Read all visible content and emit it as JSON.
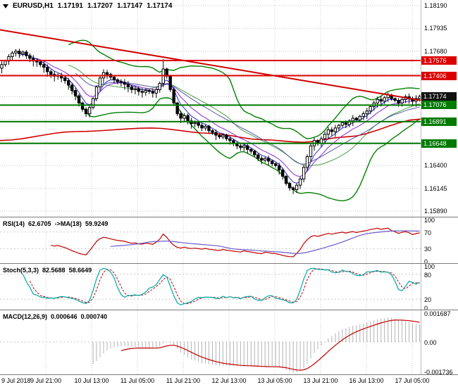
{
  "title": {
    "symbol_period": "EURUSD,H1",
    "open": "1.17191",
    "high": "1.17207",
    "low": "1.17147",
    "close": "1.17174"
  },
  "colors": {
    "grid": "#c9c9c9",
    "axis_text": "#000000",
    "bull": "#ffffff",
    "bear": "#000000",
    "candle_stroke": "#000000",
    "bollinger": "#008000",
    "bollinger_mid": "#4aa04a",
    "ma_fast": [
      "#2b2bd0",
      "#8a2bd0",
      "#5757a8"
    ],
    "ma_slow": "#d00000",
    "trendline": "#d00000",
    "resistance": "#dd0000",
    "support": "#007a00",
    "current_price_bg": "#111111",
    "rsi": "#c00000",
    "rsi_ma": "#6a5acd",
    "stoch_main": "#00a8a8",
    "stoch_signal": "#c00000",
    "macd_hist": "#b4b4b4",
    "macd_signal": "#c00000"
  },
  "chart_data": {
    "type": "candlestick",
    "symbol": "EURUSD",
    "timeframe": "H1",
    "x_labels": [
      "9 Jul 2018",
      "9 Jul 21:00",
      "10 Jul 13:00",
      "11 Jul 05:00",
      "11 Jul 21:00",
      "12 Jul 13:00",
      "13 Jul 05:00",
      "13 Jul 21:00",
      "16 Jul 13:00",
      "17 Jul 05:00"
    ],
    "y_range": [
      1.1589,
      1.1819
    ],
    "y_ticks": [
      {
        "text": "1.18190",
        "price": 1.1819
      },
      {
        "text": "1.17935",
        "price": 1.17935
      },
      {
        "text": "1.17680",
        "price": 1.1768
      },
      {
        "text": "1.16400",
        "price": 1.164
      },
      {
        "text": "1.16145",
        "price": 1.16145
      },
      {
        "text": "1.15890",
        "price": 1.1589
      }
    ],
    "y_gridlines": [
      1.1819,
      1.17935,
      1.1768,
      1.17425,
      1.1717,
      1.16915,
      1.1666,
      1.164,
      1.16145,
      1.1589
    ],
    "closes": [
      1.1753,
      1.1757,
      1.1762,
      1.1766,
      1.1768,
      1.1765,
      1.1767,
      1.1763,
      1.176,
      1.1757,
      1.1756,
      1.1753,
      1.175,
      1.1745,
      1.1742,
      1.174,
      1.1741,
      1.1738,
      1.1735,
      1.173,
      1.1724,
      1.1718,
      1.171,
      1.1703,
      1.1698,
      1.1705,
      1.1715,
      1.1728,
      1.1738,
      1.1744,
      1.1742,
      1.1739,
      1.1736,
      1.1734,
      1.1733,
      1.1731,
      1.1728,
      1.1725,
      1.1726,
      1.1723,
      1.1722,
      1.1724,
      1.1723,
      1.1721,
      1.1725,
      1.1732,
      1.1748,
      1.174,
      1.1725,
      1.171,
      1.1698,
      1.1693,
      1.1696,
      1.169,
      1.1687,
      1.1688,
      1.1685,
      1.1682,
      1.1684,
      1.1679,
      1.1677,
      1.1674,
      1.1672,
      1.1674,
      1.167,
      1.1668,
      1.1665,
      1.1662,
      1.166,
      1.1662,
      1.1658,
      1.1656,
      1.1652,
      1.1648,
      1.1646,
      1.1648,
      1.1645,
      1.1642,
      1.164,
      1.1635,
      1.1628,
      1.162,
      1.1615,
      1.1613,
      1.1618,
      1.1625,
      1.1638,
      1.165,
      1.1662,
      1.1668,
      1.1665,
      1.167,
      1.1675,
      1.168,
      1.1678,
      1.1682,
      1.1685,
      1.1688,
      1.1686,
      1.169,
      1.1693,
      1.1691,
      1.1695,
      1.1698,
      1.1701,
      1.1706,
      1.171,
      1.1714,
      1.1712,
      1.1716,
      1.1719,
      1.1715,
      1.1713,
      1.171,
      1.1714,
      1.1717,
      1.1715,
      1.1712,
      1.1715,
      1.17174
    ],
    "wick_overrides": {
      "46": {
        "high": 1.1759
      },
      "83": {
        "low": 1.1608
      }
    },
    "levels": [
      {
        "label": "1.17576",
        "price": 1.17576,
        "kind": "resistance"
      },
      {
        "label": "1.17406",
        "price": 1.17406,
        "kind": "resistance"
      },
      {
        "label": "1.17174",
        "price": 1.17174,
        "kind": "current"
      },
      {
        "label": "1.17076",
        "price": 1.17076,
        "kind": "support"
      },
      {
        "label": "1.16891",
        "price": 1.16891,
        "kind": "support"
      },
      {
        "label": "1.16648",
        "price": 1.16648,
        "kind": "support"
      }
    ],
    "trendlines": [
      {
        "from": [
          0,
          1.1792
        ],
        "to": [
          1,
          1.1713
        ]
      }
    ],
    "slow_ma_points": [
      [
        0,
        1.1668
      ],
      [
        0.18,
        1.1678
      ],
      [
        0.36,
        1.1682
      ],
      [
        0.5,
        1.1676
      ],
      [
        0.62,
        1.1669
      ],
      [
        0.72,
        1.1666
      ],
      [
        0.82,
        1.1672
      ],
      [
        1,
        1.1692
      ]
    ],
    "indicators": {
      "bollinger": {
        "period": 20,
        "deviation": 2
      },
      "fast_mas": [
        {
          "period": 5
        },
        {
          "period": 10
        },
        {
          "period": 21
        }
      ],
      "rsi": {
        "label": "RSI(14)",
        "value": "62.6705",
        "ma_label": "->MA(18)",
        "ma_value": "59.9249",
        "period": 14,
        "ma_period": 18,
        "scale_labels": [
          {
            "text": "100",
            "v": 100
          },
          {
            "text": "70",
            "v": 70
          },
          {
            "text": "30",
            "v": 30
          },
          {
            "text": "0",
            "v": 0
          }
        ],
        "dashed_levels": [
          70,
          30
        ]
      },
      "stoch": {
        "label": "Stoch(5,3,3)",
        "value": "82.5688",
        "signal_value": "58.6649",
        "k_period": 5,
        "d_period": 3,
        "slowing": 3,
        "scale_labels": [
          {
            "text": "100",
            "v": 100
          },
          {
            "text": "80",
            "v": 80
          },
          {
            "text": "20",
            "v": 20
          },
          {
            "text": "0",
            "v": 0
          }
        ],
        "dashed_levels": [
          80,
          20
        ]
      },
      "macd": {
        "label": "MACD(12,26,9)",
        "value": "0.000646",
        "signal_value": "0.000740",
        "fast": 12,
        "slow": 26,
        "signal": 9,
        "scale_labels": [
          {
            "text": "0.001687",
            "v": 0.001687
          },
          {
            "text": "0.00",
            "v": 0
          },
          {
            "text": "-0.001736",
            "v": -0.001736
          }
        ],
        "range": [
          -0.001736,
          0.001687
        ]
      }
    }
  }
}
